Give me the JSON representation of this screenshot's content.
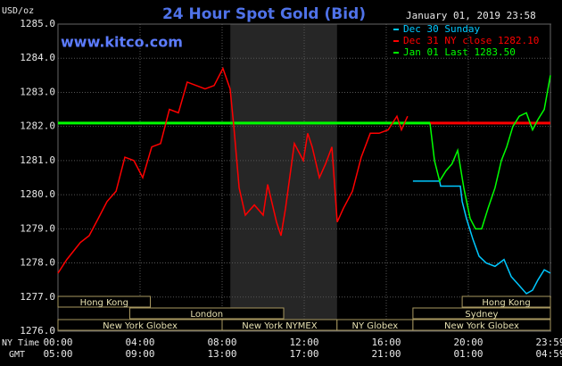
{
  "site": "www.kitco.com",
  "timestamp": "January 01, 2019 23:58",
  "x_axis_labels": [
    "NY Time",
    "GMT"
  ],
  "chart_data": {
    "type": "line",
    "title": "24 Hour Spot Gold (Bid)",
    "y_unit": "USD/oz",
    "xlim": [
      0,
      24
    ],
    "ylim": [
      1276,
      1285
    ],
    "yticks": [
      {
        "value": 1276,
        "label": "1276.0"
      },
      {
        "value": 1277,
        "label": "1277.0"
      },
      {
        "value": 1278,
        "label": "1278.0"
      },
      {
        "value": 1279,
        "label": "1279.0"
      },
      {
        "value": 1280,
        "label": "1280.0"
      },
      {
        "value": 1281,
        "label": "1281.0"
      },
      {
        "value": 1282,
        "label": "1282.0"
      },
      {
        "value": 1283,
        "label": "1283.0"
      },
      {
        "value": 1284,
        "label": "1284.0"
      },
      {
        "value": 1285,
        "label": "1285.0"
      }
    ],
    "xticks": [
      {
        "value": 0,
        "label": "00:00"
      },
      {
        "value": 4,
        "label": "04:00"
      },
      {
        "value": 8,
        "label": "08:00"
      },
      {
        "value": 12,
        "label": "12:00"
      },
      {
        "value": 16,
        "label": "16:00"
      },
      {
        "value": 20,
        "label": "20:00"
      },
      {
        "value": 24,
        "label": "23:59"
      }
    ],
    "gmt_labels": [
      "05:00",
      "09:00",
      "13:00",
      "17:00",
      "21:00",
      "01:00",
      "04:59"
    ],
    "grid": true,
    "shaded_hours": [
      8.4,
      13.6
    ],
    "reference_lines": [
      {
        "value": 1282.1,
        "color": "#00ff00",
        "from": 0,
        "to": 18.13
      },
      {
        "value": 1282.1,
        "color": "#ff0000",
        "from": 18.13,
        "to": 24
      }
    ],
    "series": [
      {
        "name": "Dec 30 Sunday",
        "color": "#00c8ff",
        "x": [
          17.3,
          18.6,
          18.65,
          19.61,
          19.7,
          19.91,
          20.22,
          20.52,
          20.87,
          21.3,
          21.74,
          22.09,
          22.39,
          22.83,
          23.13,
          23.39,
          23.7,
          24
        ],
        "values": [
          1280.4,
          1280.4,
          1280.25,
          1280.25,
          1279.8,
          1279.3,
          1278.7,
          1278.2,
          1278.0,
          1277.9,
          1278.1,
          1277.6,
          1277.4,
          1277.1,
          1277.2,
          1277.5,
          1277.8,
          1277.7
        ]
      },
      {
        "name": "Dec 31 NY close 1282.10",
        "color": "#ff0000",
        "x": [
          0,
          0.43,
          1.09,
          1.52,
          1.96,
          2.39,
          2.83,
          3.26,
          3.7,
          4.13,
          4.57,
          5.0,
          5.43,
          5.87,
          6.3,
          6.74,
          7.17,
          7.61,
          8.04,
          8.39,
          8.57,
          8.83,
          9.13,
          9.57,
          10.0,
          10.22,
          10.65,
          10.87,
          11.09,
          11.52,
          11.96,
          12.17,
          12.39,
          12.74,
          13.04,
          13.35,
          13.61,
          13.91,
          14.35,
          14.78,
          15.22,
          15.65,
          16.09,
          16.52,
          16.74,
          17.04
        ],
        "values": [
          1277.7,
          1278.1,
          1278.6,
          1278.8,
          1279.3,
          1279.8,
          1280.1,
          1281.1,
          1281.0,
          1280.5,
          1281.4,
          1281.5,
          1282.5,
          1282.4,
          1283.3,
          1283.2,
          1283.1,
          1283.2,
          1283.7,
          1283.1,
          1282.0,
          1280.2,
          1279.4,
          1279.7,
          1279.4,
          1280.3,
          1279.2,
          1278.8,
          1279.6,
          1281.5,
          1281.0,
          1281.8,
          1281.4,
          1280.5,
          1280.9,
          1281.4,
          1279.2,
          1279.6,
          1280.1,
          1281.1,
          1281.8,
          1281.8,
          1281.9,
          1282.3,
          1281.9,
          1282.3
        ]
      },
      {
        "name": "Jan 01 Last 1283.50",
        "color": "#00ff00",
        "x": [
          18.13,
          18.35,
          18.6,
          18.91,
          19.2,
          19.48,
          19.78,
          20.09,
          20.35,
          20.65,
          20.96,
          21.3,
          21.61,
          21.87,
          22.17,
          22.48,
          22.83,
          23.13,
          23.39,
          23.7,
          24
        ],
        "values": [
          1282.1,
          1281.0,
          1280.4,
          1280.7,
          1280.9,
          1281.3,
          1280.2,
          1279.3,
          1279.0,
          1279.0,
          1279.6,
          1280.2,
          1281.0,
          1281.4,
          1282.0,
          1282.3,
          1282.4,
          1281.9,
          1282.2,
          1282.5,
          1283.5
        ]
      }
    ],
    "session_rows": [
      [
        {
          "label": "Hong Kong",
          "start": 0,
          "end": 4.5
        },
        {
          "label": "Hong Kong",
          "start": 19.7,
          "end": 24
        }
      ],
      [
        {
          "label": "London",
          "start": 3.5,
          "end": 11.0
        },
        {
          "label": "Sydney",
          "start": 17.3,
          "end": 24
        }
      ],
      [
        {
          "label": "New York Globex",
          "start": 0,
          "end": 8.0
        },
        {
          "label": "New York NYMEX",
          "start": 8.0,
          "end": 13.6
        },
        {
          "label": "NY Globex",
          "start": 13.6,
          "end": 17.3
        },
        {
          "label": "New York Globex",
          "start": 17.3,
          "end": 24
        }
      ]
    ]
  }
}
